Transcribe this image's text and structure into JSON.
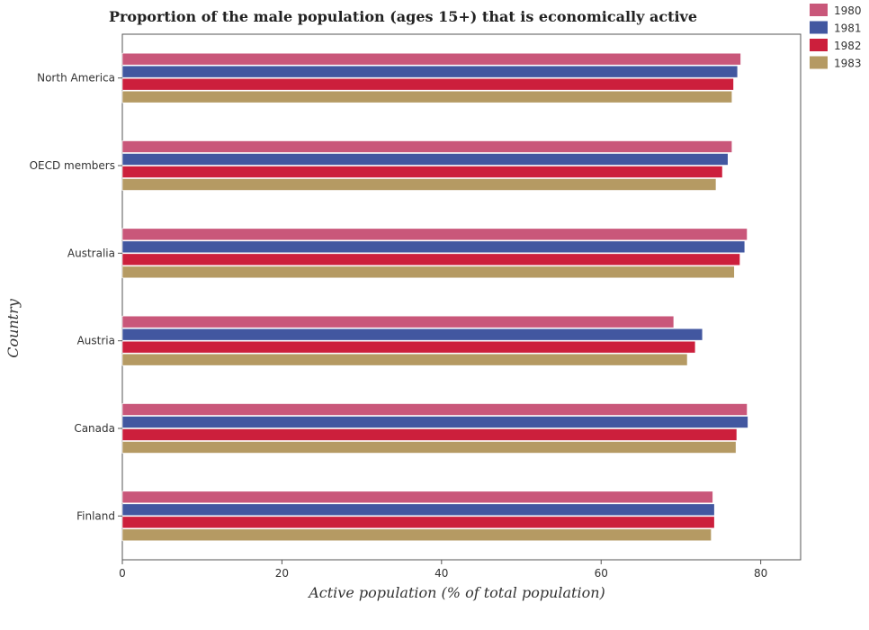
{
  "chart_data": {
    "type": "bar",
    "orientation": "horizontal",
    "title": "Proportion of the male population (ages 15+) that is economically active",
    "xlabel": "Active population (% of total population)",
    "ylabel": "Country",
    "xlim": [
      0,
      85
    ],
    "xticks": [
      0,
      20,
      40,
      60,
      80
    ],
    "grid": false,
    "legend_position": "top-right",
    "categories": [
      "North America",
      "OECD members",
      "Australia",
      "Austria",
      "Canada",
      "Finland"
    ],
    "series": [
      {
        "name": "1980",
        "color": "#c9577a",
        "values": [
          77.5,
          76.4,
          78.3,
          69.1,
          78.3,
          74.0
        ]
      },
      {
        "name": "1981",
        "color": "#4257a0",
        "values": [
          77.1,
          75.9,
          78.0,
          72.7,
          78.4,
          74.2
        ]
      },
      {
        "name": "1982",
        "color": "#cc1f3c",
        "values": [
          76.6,
          75.2,
          77.4,
          71.8,
          77.0,
          74.2
        ]
      },
      {
        "name": "1983",
        "color": "#b59a63",
        "values": [
          76.4,
          74.4,
          76.7,
          70.8,
          76.9,
          73.8
        ]
      }
    ]
  }
}
